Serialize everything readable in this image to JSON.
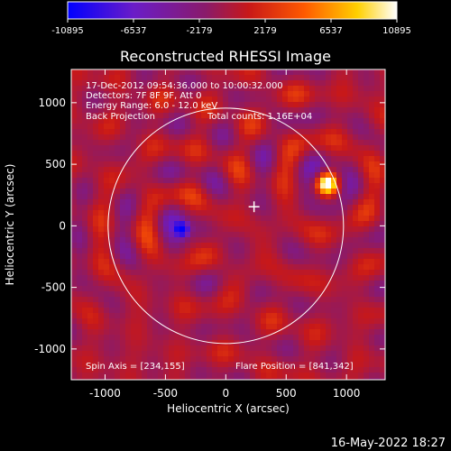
{
  "chart_data": {
    "type": "heatmap",
    "title": "Reconstructed RHESSI Image",
    "xlabel": "Heliocentric X (arcsec)",
    "ylabel": "Heliocentric Y (arcsec)",
    "xlim": [
      -1280,
      1320
    ],
    "ylim": [
      -1250,
      1270
    ],
    "xticks": [
      -1000,
      -500,
      0,
      500,
      1000
    ],
    "yticks": [
      -1000,
      -500,
      0,
      500,
      1000
    ],
    "colorbar": {
      "min": -10895,
      "max": 10895,
      "ticks": [
        "-10895",
        "-6537",
        "-2179",
        "2179",
        "6537",
        "10895"
      ],
      "colors": [
        "#0000ff",
        "#6a1cc8",
        "#8a1a6a",
        "#c81818",
        "#ff5a00",
        "#ffd000",
        "#ffffff"
      ]
    },
    "annotations": {
      "time_range": "17-Dec-2012 09:54:36.000 to 10:00:32.000",
      "detectors": "Detectors: 7F 8F 9F, Att 0",
      "energy_range": "Energy Range: 6.0 - 12.0 keV",
      "method": "Back Projection",
      "total_counts": "Total counts: 1.16E+04",
      "spin_axis": "Spin Axis = [234,155]",
      "flare_position": "Flare Position = [841,342]"
    },
    "solar_limb": {
      "center": [
        0,
        0
      ],
      "radius": 975
    },
    "spin_axis_marker": [
      234,
      155
    ],
    "sources": [
      {
        "label": "flare",
        "x": 841,
        "y": 342,
        "value": 10895
      },
      {
        "label": "negative_peak",
        "x": -360,
        "y": -30,
        "value": -10895
      }
    ],
    "colors": {
      "background": "#000000",
      "foreground": "#ffffff",
      "limb": "#ffffff"
    }
  },
  "footer_timestamp": "16-May-2022 18:27"
}
